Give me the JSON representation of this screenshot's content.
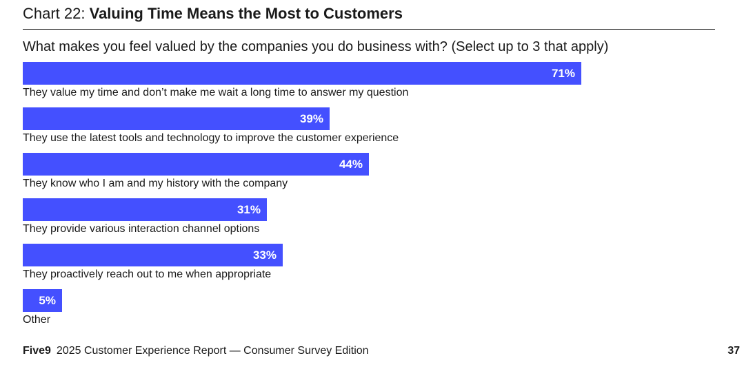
{
  "header": {
    "prefix": "Chart 22: ",
    "title": "Valuing Time Means the Most to Customers"
  },
  "chart_data": {
    "type": "bar",
    "orientation": "horizontal",
    "title": "What makes you feel valued by the companies you do business with? (Select up to 3 that apply)",
    "categories": [
      "They value my time and don’t make me wait a long time to answer my question",
      "They use the latest tools and technology to improve the customer experience",
      "They know who I am and my history with the company",
      "They provide various interaction channel options",
      "They proactively reach out to me when appropriate",
      "Other"
    ],
    "values": [
      71,
      39,
      44,
      31,
      33,
      5
    ],
    "value_labels": [
      "71%",
      "39%",
      "44%",
      "31%",
      "33%",
      "5%"
    ],
    "unit": "%",
    "xlim": [
      0,
      88
    ],
    "bar_color": "#4450ff"
  },
  "footer": {
    "brand": "Five9",
    "report": "2025 Customer Experience Report — Consumer Survey Edition",
    "page": "37"
  }
}
